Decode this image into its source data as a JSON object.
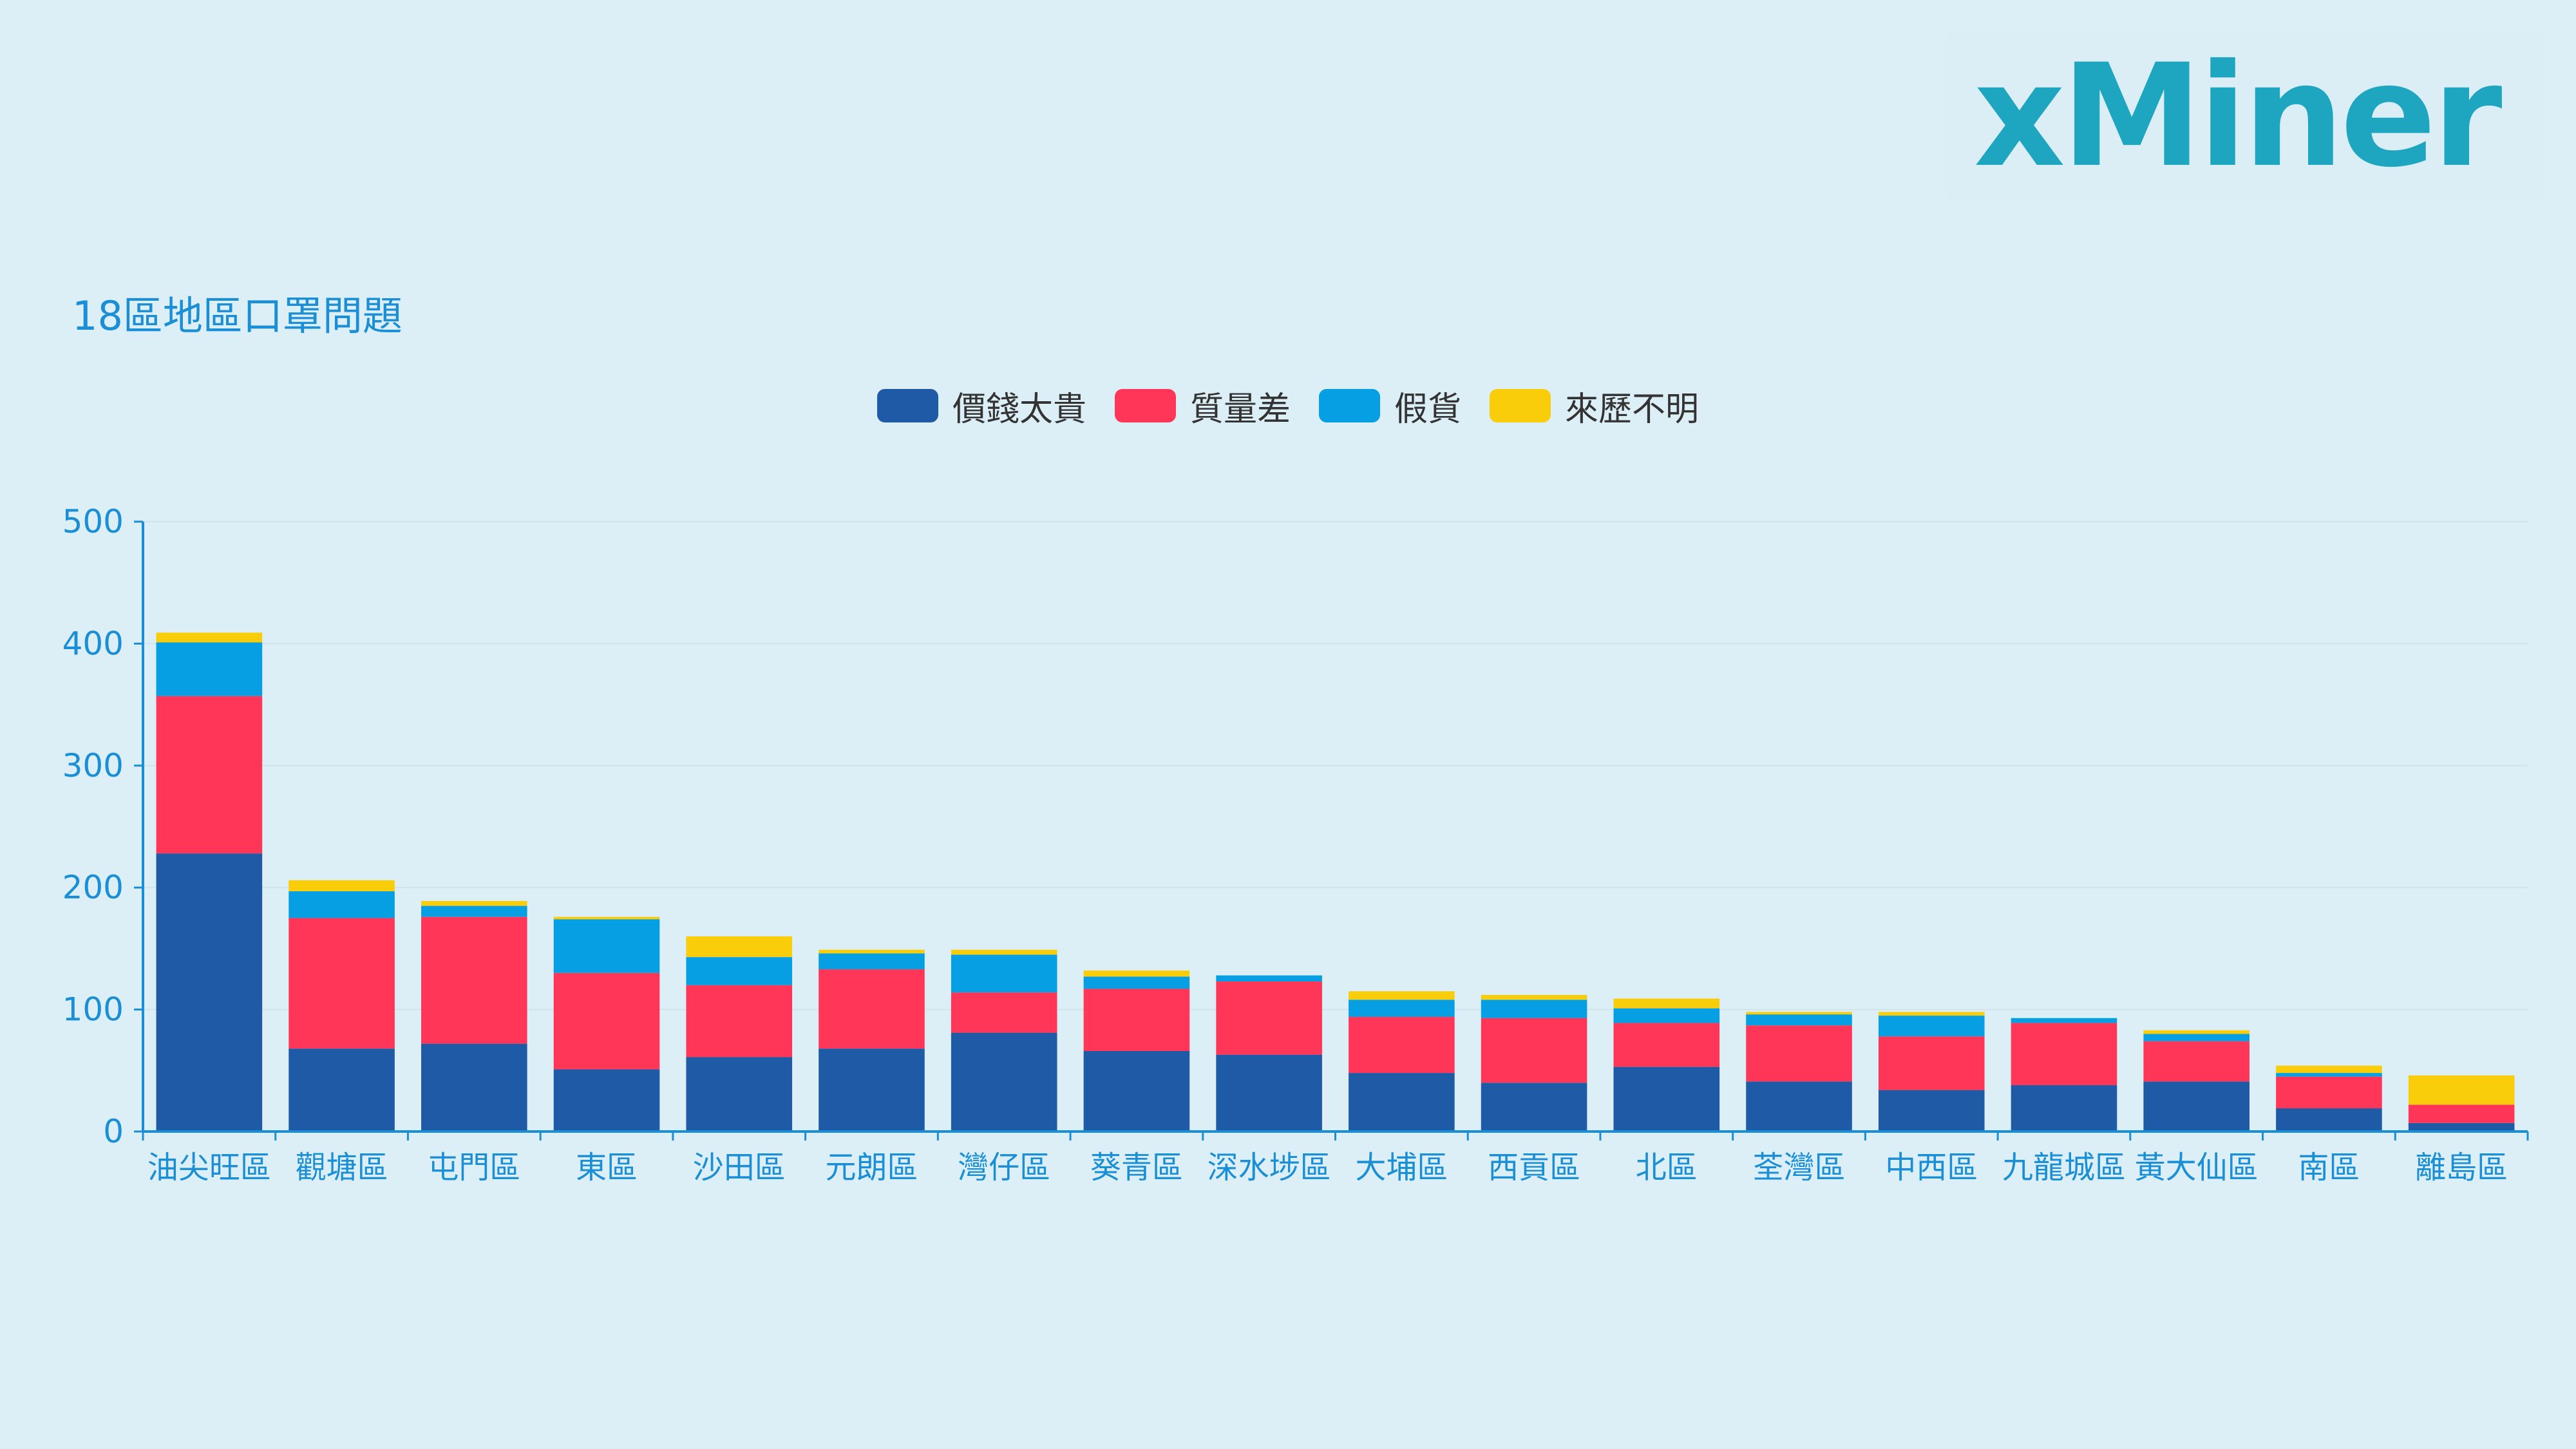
{
  "logo": {
    "text": "xMiner"
  },
  "chart_data": {
    "type": "bar",
    "stacked": true,
    "title": "18區地區口罩問題",
    "xlabel": "",
    "ylabel": "",
    "ylim": [
      0,
      500
    ],
    "yticks": [
      0,
      100,
      200,
      300,
      400,
      500
    ],
    "grid": true,
    "legend_position": "top-center",
    "categories": [
      "油尖旺區",
      "觀塘區",
      "屯門區",
      "東區",
      "沙田區",
      "元朗區",
      "灣仔區",
      "葵青區",
      "深水埗區",
      "大埔區",
      "西貢區",
      "北區",
      "荃灣區",
      "中西區",
      "九龍城區",
      "黃大仙區",
      "南區",
      "離島區"
    ],
    "series": [
      {
        "name": "價錢太貴",
        "color": "#1f5aa6",
        "values": [
          228,
          68,
          72,
          51,
          61,
          68,
          81,
          66,
          63,
          48,
          40,
          53,
          41,
          34,
          38,
          41,
          19,
          7
        ]
      },
      {
        "name": "質量差",
        "color": "#ff3657",
        "values": [
          129,
          107,
          104,
          79,
          59,
          65,
          33,
          51,
          60,
          46,
          53,
          36,
          46,
          44,
          51,
          33,
          26,
          15
        ]
      },
      {
        "name": "假貨",
        "color": "#079fe4",
        "values": [
          44,
          22,
          9,
          44,
          23,
          13,
          31,
          10,
          5,
          14,
          15,
          12,
          9,
          17,
          4,
          6,
          3,
          0
        ]
      },
      {
        "name": "來歷不明",
        "color": "#f9cd09",
        "values": [
          8,
          9,
          4,
          2,
          17,
          3,
          4,
          5,
          0,
          7,
          4,
          8,
          2,
          3,
          0,
          3,
          6,
          24
        ]
      }
    ]
  }
}
